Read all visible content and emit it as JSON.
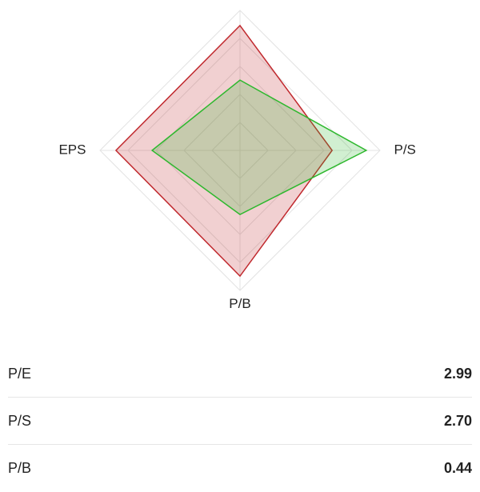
{
  "chart_data": {
    "type": "radar",
    "categories": [
      null,
      "P/S",
      "P/B",
      "EPS"
    ],
    "rlim": [
      0,
      5
    ],
    "rticks": [
      1,
      2,
      3,
      4,
      5
    ],
    "series": [
      {
        "color": "#c0282d",
        "values": [
          4.46,
          3.29,
          4.49,
          4.43
        ]
      },
      {
        "color": "#2eb82e",
        "values": [
          2.51,
          4.51,
          2.29,
          3.14
        ]
      }
    ]
  },
  "table": {
    "rows": [
      [
        "P/E",
        "2.99"
      ],
      [
        "P/S",
        "2.70"
      ],
      [
        "P/B",
        "0.44"
      ]
    ]
  }
}
